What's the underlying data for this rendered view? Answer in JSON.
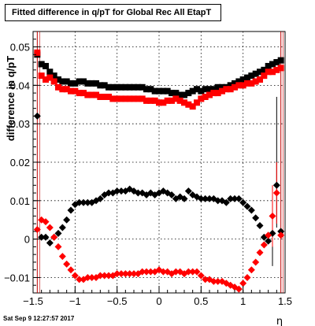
{
  "title": "Fitted difference in q/pT for Global Rec All EtapT",
  "footer_date": "Sat Sep  9 12:27:57 2017",
  "colors": {
    "black_series": "#000000",
    "red_series": "#ff0000",
    "vline": "#c00000"
  },
  "chart_data": {
    "type": "scatter",
    "title": "Fitted difference in q/pT for Global Rec All EtapT",
    "xlabel": "η",
    "ylabel": "difference in q/pT",
    "xlim": [
      -1.5,
      1.5
    ],
    "ylim": [
      -0.014,
      0.054
    ],
    "x_ticks": [
      "−1.5",
      "−1",
      "−0.5",
      "0",
      "0.5",
      "1",
      "1.5"
    ],
    "y_ticks": [
      "−0.01",
      "0",
      "0.01",
      "0.02",
      "0.03",
      "0.04",
      "0.05"
    ],
    "grid": true,
    "reference_lines_x": [
      -1.45,
      1.45
    ],
    "series": [
      {
        "marker": "square",
        "color": "#000000",
        "x": [
          -1.45,
          -1.4,
          -1.35,
          -1.3,
          -1.25,
          -1.2,
          -1.15,
          -1.1,
          -1.05,
          -1.0,
          -0.95,
          -0.9,
          -0.85,
          -0.8,
          -0.75,
          -0.7,
          -0.65,
          -0.6,
          -0.55,
          -0.5,
          -0.45,
          -0.4,
          -0.35,
          -0.3,
          -0.25,
          -0.2,
          -0.15,
          -0.1,
          -0.05,
          0.0,
          0.05,
          0.1,
          0.15,
          0.2,
          0.25,
          0.3,
          0.35,
          0.4,
          0.45,
          0.5,
          0.55,
          0.6,
          0.65,
          0.7,
          0.75,
          0.8,
          0.85,
          0.9,
          0.95,
          1.0,
          1.05,
          1.1,
          1.15,
          1.2,
          1.25,
          1.3,
          1.35,
          1.4,
          1.45
        ],
        "y": [
          0.048,
          0.0455,
          0.045,
          0.0435,
          0.0425,
          0.0415,
          0.041,
          0.041,
          0.0405,
          0.0405,
          0.041,
          0.041,
          0.0405,
          0.0405,
          0.0405,
          0.04,
          0.04,
          0.0395,
          0.0395,
          0.0395,
          0.0395,
          0.0395,
          0.0395,
          0.0395,
          0.0395,
          0.0395,
          0.039,
          0.039,
          0.0385,
          0.0385,
          0.0385,
          0.0385,
          0.038,
          0.038,
          0.0375,
          0.0375,
          0.038,
          0.0385,
          0.039,
          0.0385,
          0.039,
          0.039,
          0.039,
          0.0395,
          0.0395,
          0.0395,
          0.04,
          0.0405,
          0.041,
          0.0415,
          0.042,
          0.0425,
          0.043,
          0.0435,
          0.044,
          0.045,
          0.0455,
          0.046,
          0.0465
        ]
      },
      {
        "marker": "square",
        "color": "#ff0000",
        "x": [
          -1.45,
          -1.4,
          -1.35,
          -1.3,
          -1.25,
          -1.2,
          -1.15,
          -1.1,
          -1.05,
          -1.0,
          -0.95,
          -0.9,
          -0.85,
          -0.8,
          -0.75,
          -0.7,
          -0.65,
          -0.6,
          -0.55,
          -0.5,
          -0.45,
          -0.4,
          -0.35,
          -0.3,
          -0.25,
          -0.2,
          -0.15,
          -0.1,
          -0.05,
          0.0,
          0.05,
          0.1,
          0.15,
          0.2,
          0.25,
          0.3,
          0.35,
          0.4,
          0.45,
          0.5,
          0.55,
          0.6,
          0.65,
          0.7,
          0.75,
          0.8,
          0.85,
          0.9,
          0.95,
          1.0,
          1.05,
          1.1,
          1.15,
          1.2,
          1.25,
          1.3,
          1.35,
          1.4,
          1.45
        ],
        "y": [
          0.0485,
          0.0425,
          0.0415,
          0.042,
          0.041,
          0.0395,
          0.039,
          0.039,
          0.0385,
          0.0385,
          0.038,
          0.038,
          0.0375,
          0.0375,
          0.0375,
          0.037,
          0.037,
          0.037,
          0.0365,
          0.0365,
          0.0365,
          0.0365,
          0.0365,
          0.0365,
          0.0365,
          0.0365,
          0.036,
          0.036,
          0.036,
          0.0355,
          0.0355,
          0.036,
          0.036,
          0.0365,
          0.036,
          0.0355,
          0.035,
          0.0345,
          0.0355,
          0.0365,
          0.037,
          0.0375,
          0.038,
          0.038,
          0.0385,
          0.039,
          0.039,
          0.0395,
          0.04,
          0.04,
          0.0405,
          0.0405,
          0.041,
          0.0415,
          0.0425,
          0.0435,
          0.0435,
          0.044,
          0.0445
        ]
      },
      {
        "marker": "diamond",
        "color": "#000000",
        "x": [
          -1.45,
          -1.4,
          -1.35,
          -1.3,
          -1.25,
          -1.2,
          -1.15,
          -1.1,
          -1.05,
          -1.0,
          -0.95,
          -0.9,
          -0.85,
          -0.8,
          -0.75,
          -0.7,
          -0.65,
          -0.6,
          -0.55,
          -0.5,
          -0.45,
          -0.4,
          -0.35,
          -0.3,
          -0.25,
          -0.2,
          -0.15,
          -0.1,
          -0.05,
          0.0,
          0.05,
          0.1,
          0.15,
          0.2,
          0.25,
          0.3,
          0.35,
          0.4,
          0.45,
          0.5,
          0.55,
          0.6,
          0.65,
          0.7,
          0.75,
          0.8,
          0.85,
          0.9,
          0.95,
          1.0,
          1.05,
          1.1,
          1.15,
          1.2,
          1.25,
          1.3,
          1.35,
          1.4,
          1.45
        ],
        "y": [
          0.032,
          0.0005,
          0.0005,
          -0.001,
          0.0005,
          0.0015,
          0.003,
          0.005,
          0.0075,
          0.009,
          0.0095,
          0.0095,
          0.0095,
          0.0095,
          0.01,
          0.0105,
          0.0115,
          0.012,
          0.012,
          0.0125,
          0.0125,
          0.0125,
          0.013,
          0.0125,
          0.012,
          0.012,
          0.0115,
          0.012,
          0.0115,
          0.012,
          0.0125,
          0.012,
          0.0115,
          0.0105,
          0.011,
          0.0105,
          0.0125,
          0.0115,
          0.011,
          0.0105,
          0.0105,
          0.0105,
          0.0105,
          0.01,
          0.01,
          0.0095,
          0.0105,
          0.0105,
          0.0105,
          0.0095,
          0.0085,
          0.0075,
          0.0055,
          0.0035,
          0.0005,
          -0.0005,
          0.0015,
          0.014,
          0.002
        ]
      },
      {
        "marker": "diamond",
        "color": "#ff0000",
        "x": [
          -1.45,
          -1.4,
          -1.35,
          -1.3,
          -1.25,
          -1.2,
          -1.15,
          -1.1,
          -1.05,
          -1.0,
          -0.95,
          -0.9,
          -0.85,
          -0.8,
          -0.75,
          -0.7,
          -0.65,
          -0.6,
          -0.55,
          -0.5,
          -0.45,
          -0.4,
          -0.35,
          -0.3,
          -0.25,
          -0.2,
          -0.15,
          -0.1,
          -0.05,
          0.0,
          0.05,
          0.1,
          0.15,
          0.2,
          0.25,
          0.3,
          0.35,
          0.4,
          0.45,
          0.5,
          0.55,
          0.6,
          0.65,
          0.7,
          0.75,
          0.8,
          0.85,
          0.9,
          0.95,
          1.0,
          1.05,
          1.1,
          1.15,
          1.2,
          1.25,
          1.3,
          1.35,
          1.4,
          1.45
        ],
        "y": [
          0.0025,
          0.005,
          0.0045,
          0.003,
          0.0005,
          -0.002,
          -0.0045,
          -0.0065,
          -0.008,
          -0.0095,
          -0.0105,
          -0.0105,
          -0.01,
          -0.01,
          -0.01,
          -0.0095,
          -0.0095,
          -0.0095,
          -0.0095,
          -0.009,
          -0.009,
          -0.009,
          -0.009,
          -0.009,
          -0.009,
          -0.0085,
          -0.0085,
          -0.0085,
          -0.0085,
          -0.008,
          -0.0085,
          -0.0085,
          -0.009,
          -0.0085,
          -0.0085,
          -0.009,
          -0.0085,
          -0.0085,
          -0.0085,
          -0.0095,
          -0.0105,
          -0.0105,
          -0.011,
          -0.011,
          -0.011,
          -0.0115,
          -0.012,
          -0.0125,
          -0.013,
          -0.0115,
          -0.01,
          -0.008,
          -0.006,
          -0.0035,
          -0.0015,
          0.001,
          0.006,
          0.012,
          0.001
        ]
      }
    ],
    "error_bars": [
      {
        "series": 2,
        "x": 1.4,
        "low": 0.003,
        "high": 0.037
      },
      {
        "series": 2,
        "x": 1.35,
        "low": -0.007,
        "high": 0.009
      },
      {
        "series": 3,
        "x": 1.35,
        "low": -0.002,
        "high": 0.014
      },
      {
        "series": 3,
        "x": 1.4,
        "low": 0.004,
        "high": 0.02
      }
    ]
  }
}
